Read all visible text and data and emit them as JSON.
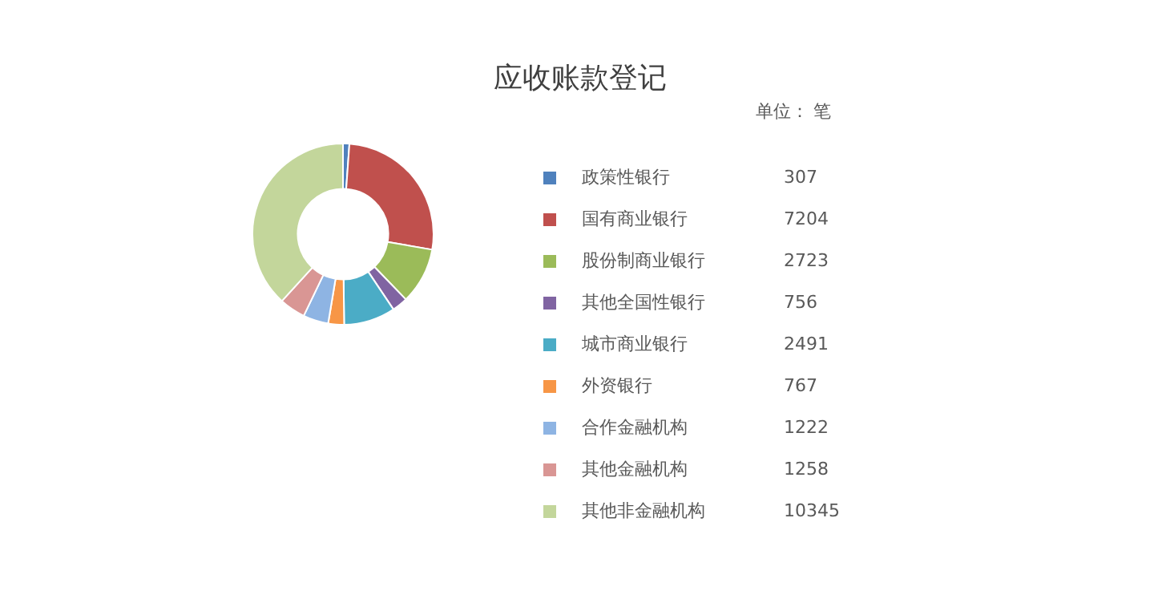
{
  "chart_data": {
    "type": "donut",
    "title": "应收账款登记",
    "subtitle": "单位： 笔",
    "categories": [
      "政策性银行",
      "国有商业银行",
      "股份制商业银行",
      "其他全国性银行",
      "城市商业银行",
      "外资银行",
      "合作金融机构",
      "其他金融机构",
      "其他非金融机构"
    ],
    "values": [
      307,
      7204,
      2723,
      756,
      2491,
      767,
      1222,
      1258,
      10345
    ],
    "colors": [
      "#4f81bd",
      "#c0504d",
      "#9bbb59",
      "#8064a2",
      "#4bacc6",
      "#f79646",
      "#8eb4e3",
      "#d99694",
      "#c3d69b"
    ],
    "data_labels": true,
    "legend": "right"
  }
}
